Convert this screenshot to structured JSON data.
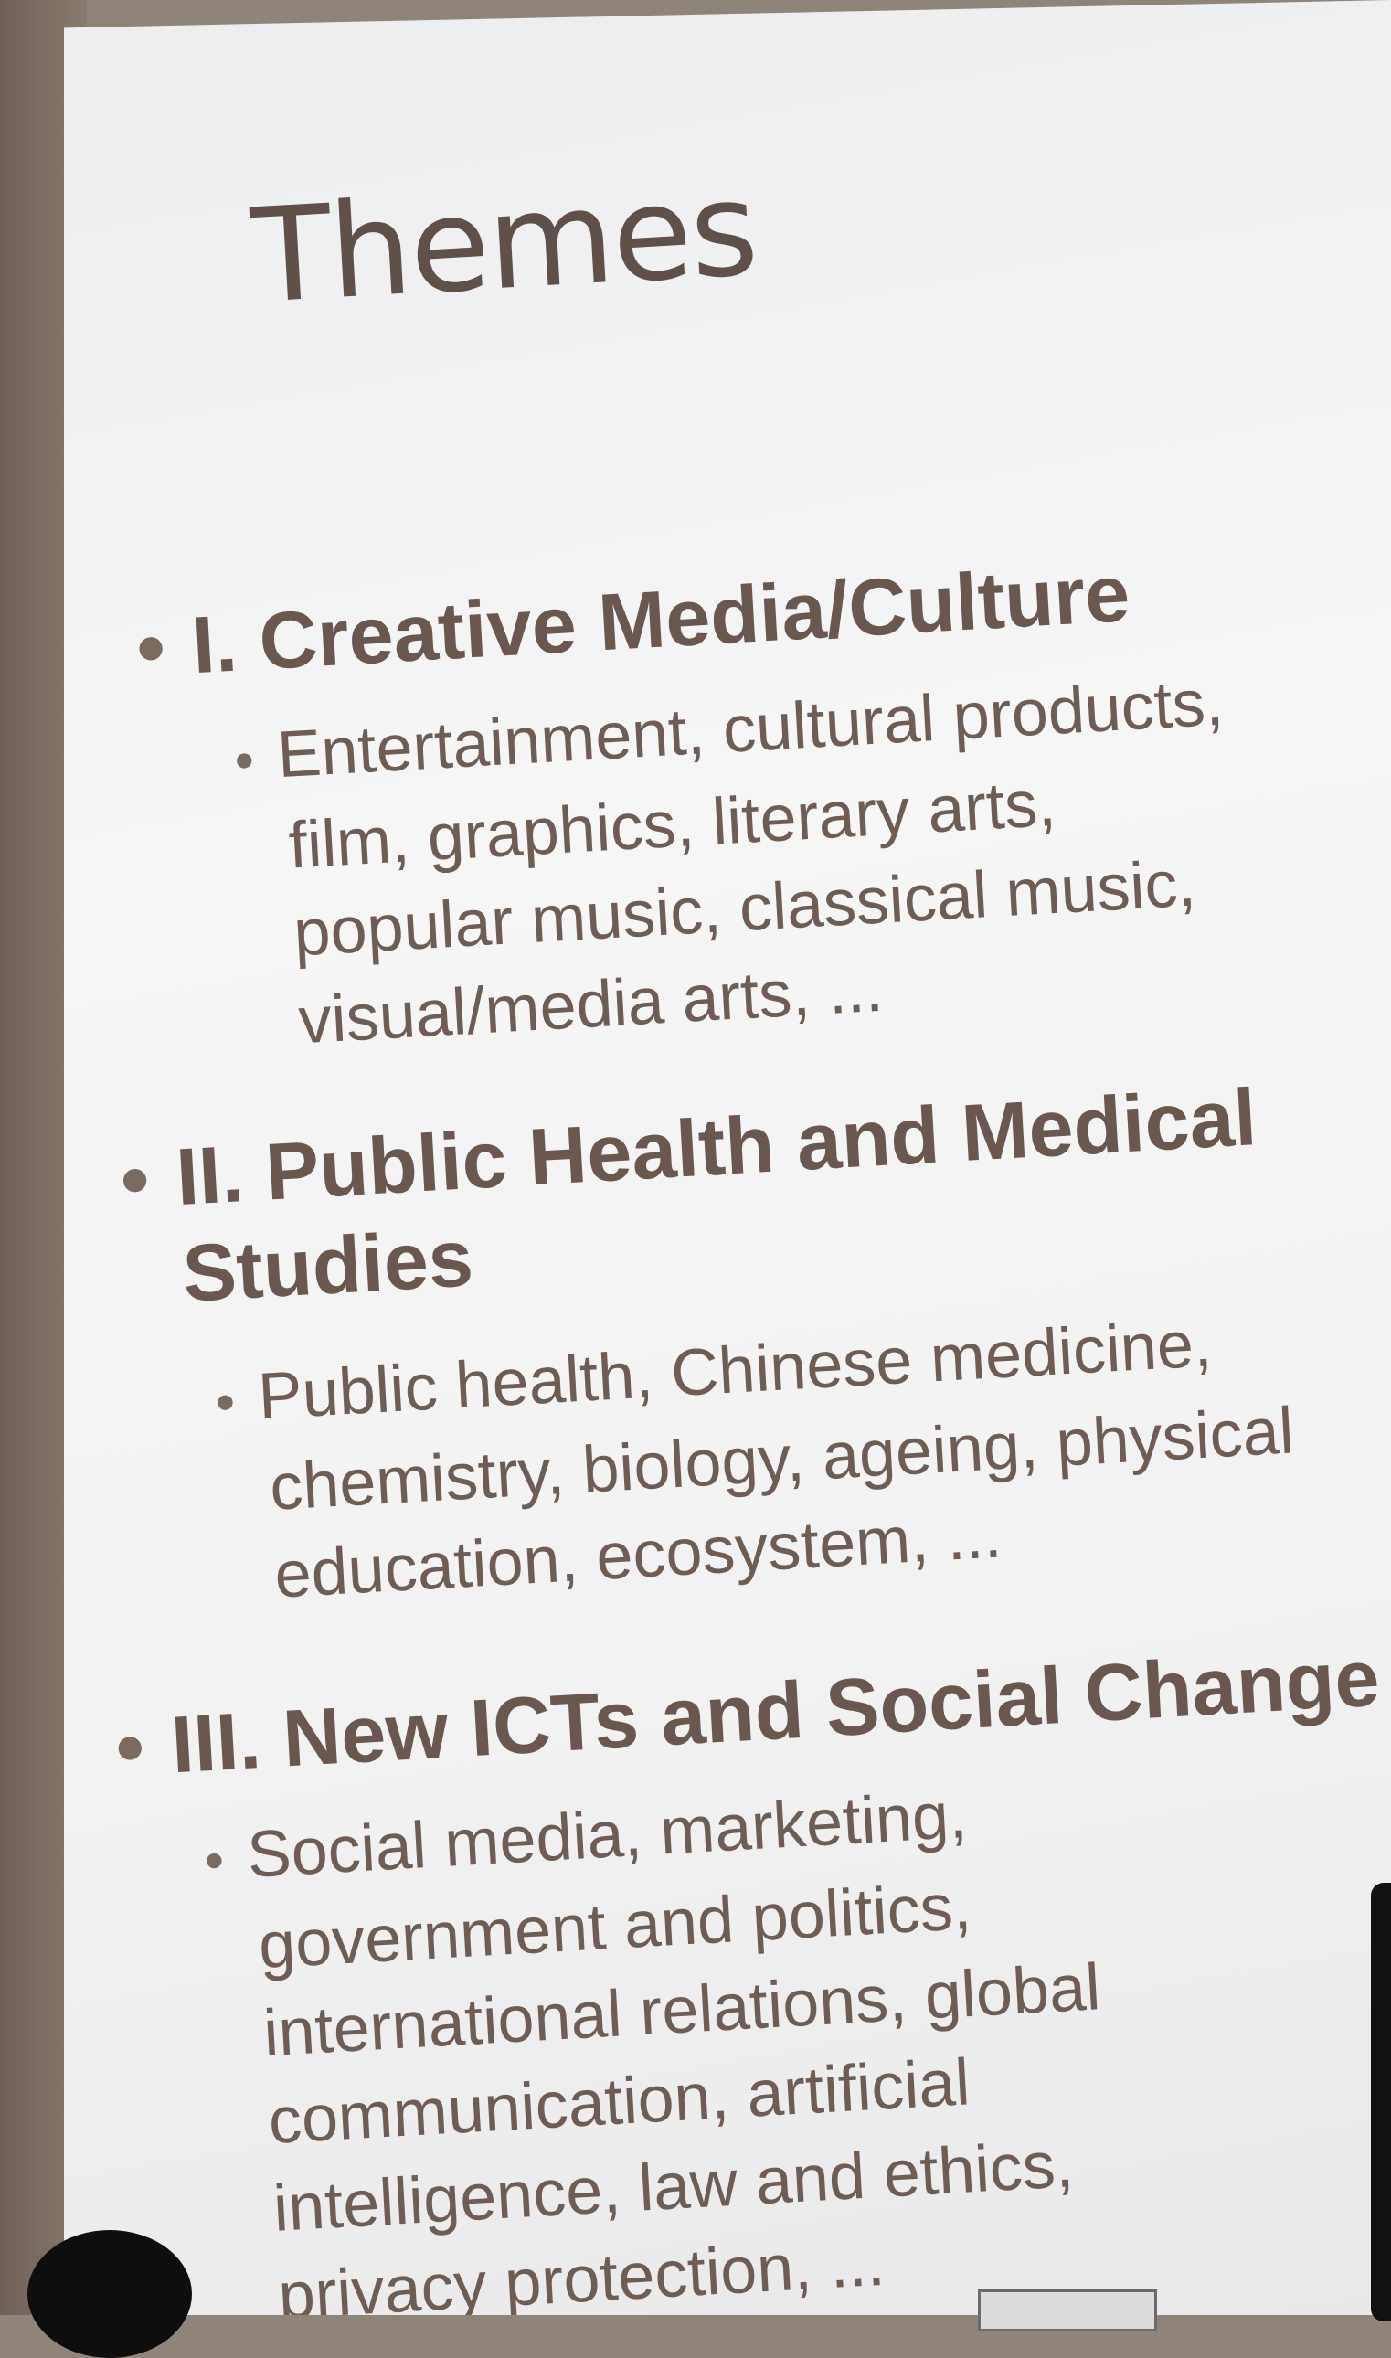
{
  "slide": {
    "title": "Themes",
    "themes": [
      {
        "heading": "I. Creative Media/Culture",
        "details": [
          "Entertainment, cultural products,",
          "film, graphics, literary arts,",
          "popular music, classical music,",
          "visual/media arts, ..."
        ]
      },
      {
        "heading_lines": [
          "II. Public Health and Medical",
          "Studies"
        ],
        "details": [
          "Public health, Chinese medicine,",
          "chemistry, biology, ageing, physical",
          "education, ecosystem, ..."
        ]
      },
      {
        "heading": "III. New ICTs and Social Change",
        "details": [
          "Social media, marketing,",
          "government and politics,",
          "international relations, global",
          "communication, artificial",
          "intelligence, law and ethics,",
          "privacy protection, ..."
        ]
      }
    ]
  },
  "colors": {
    "slide_background": "#f4f4f5",
    "text": "#6a5850",
    "wall": "#8f847a"
  },
  "icons": {
    "bullet_level1": "bullet",
    "bullet_level2": "bullet"
  }
}
